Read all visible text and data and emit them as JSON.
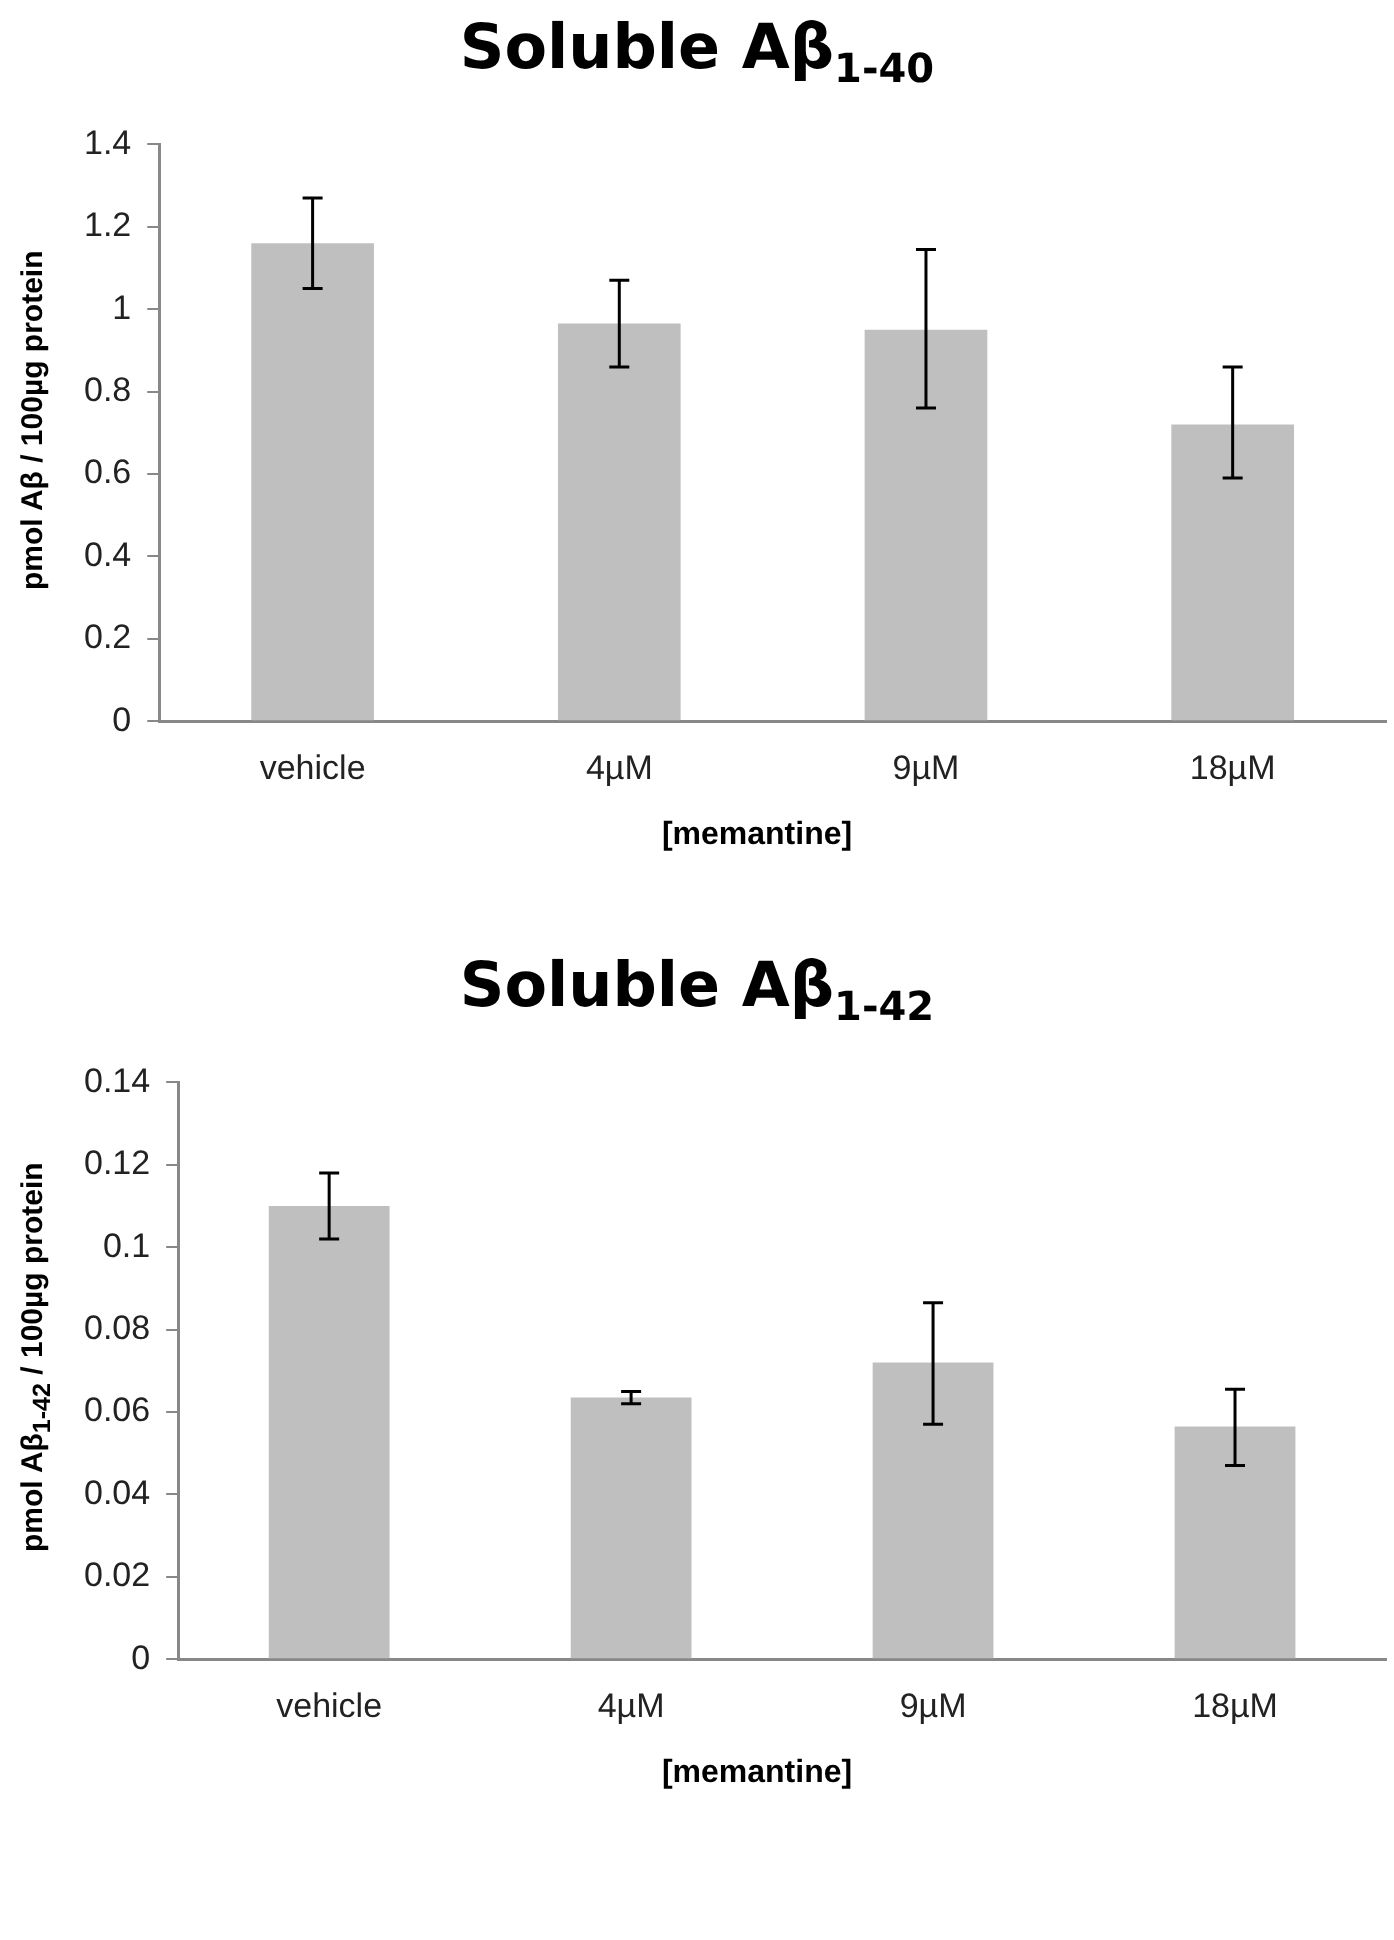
{
  "chart_data": [
    {
      "type": "bar",
      "title": "Soluble Aβ$_{1-40}$",
      "xlabel": "[memantine]",
      "ylabel": "pmol Aβ / 100µg protein",
      "categories": [
        "vehicle",
        "4µM",
        "9µM",
        "18µM"
      ],
      "values": [
        1.16,
        0.965,
        0.95,
        0.72
      ],
      "errors": [
        [
          1.05,
          1.27
        ],
        [
          0.86,
          1.07
        ],
        [
          0.76,
          1.145
        ],
        [
          0.59,
          0.86
        ]
      ],
      "color": "#bfbfbf",
      "ylim": [
        0,
        1.4
      ],
      "yticks": [
        0,
        0.2,
        0.4,
        0.6,
        0.8,
        1,
        1.2,
        1.4
      ],
      "grid": false,
      "legend": false
    },
    {
      "type": "bar",
      "title": "Soluble Aβ$_{1-42}$",
      "xlabel": "[memantine]",
      "ylabel": "pmol Aβ$_{1-42}$ / 100µg protein",
      "categories": [
        "vehicle",
        "4µM",
        "9µM",
        "18µM"
      ],
      "values": [
        0.11,
        0.0635,
        0.072,
        0.0565
      ],
      "errors": [
        [
          0.102,
          0.118
        ],
        [
          0.062,
          0.065
        ],
        [
          0.057,
          0.0865
        ],
        [
          0.047,
          0.0655
        ]
      ],
      "color": "#bfbfbf",
      "ylim": [
        0,
        0.14
      ],
      "yticks": [
        0,
        0.02,
        0.04,
        0.06,
        0.08,
        0.1,
        0.12,
        0.14
      ],
      "grid": false,
      "legend": false
    }
  ]
}
